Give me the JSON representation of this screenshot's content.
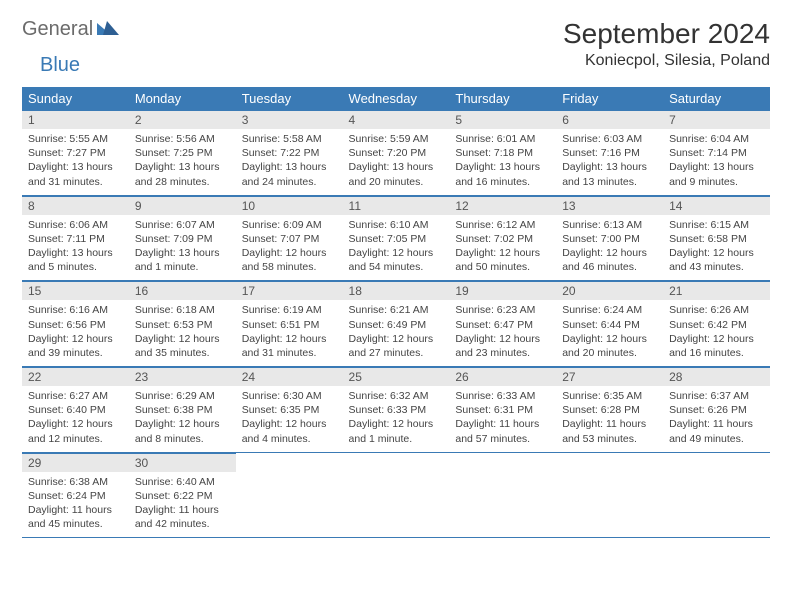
{
  "logo": {
    "part1": "General",
    "part2": "Blue"
  },
  "title": "September 2024",
  "location": "Koniecpol, Silesia, Poland",
  "colors": {
    "header_bg": "#3a7ab5",
    "header_fg": "#ffffff",
    "daynum_bg": "#e8e8e8",
    "rule": "#3a7ab5",
    "logo_gray": "#6b6b6b",
    "logo_blue": "#3a7ab5"
  },
  "weekdays": [
    "Sunday",
    "Monday",
    "Tuesday",
    "Wednesday",
    "Thursday",
    "Friday",
    "Saturday"
  ],
  "weeks": [
    [
      {
        "n": "1",
        "sr": "5:55 AM",
        "ss": "7:27 PM",
        "dl": "13 hours and 31 minutes."
      },
      {
        "n": "2",
        "sr": "5:56 AM",
        "ss": "7:25 PM",
        "dl": "13 hours and 28 minutes."
      },
      {
        "n": "3",
        "sr": "5:58 AM",
        "ss": "7:22 PM",
        "dl": "13 hours and 24 minutes."
      },
      {
        "n": "4",
        "sr": "5:59 AM",
        "ss": "7:20 PM",
        "dl": "13 hours and 20 minutes."
      },
      {
        "n": "5",
        "sr": "6:01 AM",
        "ss": "7:18 PM",
        "dl": "13 hours and 16 minutes."
      },
      {
        "n": "6",
        "sr": "6:03 AM",
        "ss": "7:16 PM",
        "dl": "13 hours and 13 minutes."
      },
      {
        "n": "7",
        "sr": "6:04 AM",
        "ss": "7:14 PM",
        "dl": "13 hours and 9 minutes."
      }
    ],
    [
      {
        "n": "8",
        "sr": "6:06 AM",
        "ss": "7:11 PM",
        "dl": "13 hours and 5 minutes."
      },
      {
        "n": "9",
        "sr": "6:07 AM",
        "ss": "7:09 PM",
        "dl": "13 hours and 1 minute."
      },
      {
        "n": "10",
        "sr": "6:09 AM",
        "ss": "7:07 PM",
        "dl": "12 hours and 58 minutes."
      },
      {
        "n": "11",
        "sr": "6:10 AM",
        "ss": "7:05 PM",
        "dl": "12 hours and 54 minutes."
      },
      {
        "n": "12",
        "sr": "6:12 AM",
        "ss": "7:02 PM",
        "dl": "12 hours and 50 minutes."
      },
      {
        "n": "13",
        "sr": "6:13 AM",
        "ss": "7:00 PM",
        "dl": "12 hours and 46 minutes."
      },
      {
        "n": "14",
        "sr": "6:15 AM",
        "ss": "6:58 PM",
        "dl": "12 hours and 43 minutes."
      }
    ],
    [
      {
        "n": "15",
        "sr": "6:16 AM",
        "ss": "6:56 PM",
        "dl": "12 hours and 39 minutes."
      },
      {
        "n": "16",
        "sr": "6:18 AM",
        "ss": "6:53 PM",
        "dl": "12 hours and 35 minutes."
      },
      {
        "n": "17",
        "sr": "6:19 AM",
        "ss": "6:51 PM",
        "dl": "12 hours and 31 minutes."
      },
      {
        "n": "18",
        "sr": "6:21 AM",
        "ss": "6:49 PM",
        "dl": "12 hours and 27 minutes."
      },
      {
        "n": "19",
        "sr": "6:23 AM",
        "ss": "6:47 PM",
        "dl": "12 hours and 23 minutes."
      },
      {
        "n": "20",
        "sr": "6:24 AM",
        "ss": "6:44 PM",
        "dl": "12 hours and 20 minutes."
      },
      {
        "n": "21",
        "sr": "6:26 AM",
        "ss": "6:42 PM",
        "dl": "12 hours and 16 minutes."
      }
    ],
    [
      {
        "n": "22",
        "sr": "6:27 AM",
        "ss": "6:40 PM",
        "dl": "12 hours and 12 minutes."
      },
      {
        "n": "23",
        "sr": "6:29 AM",
        "ss": "6:38 PM",
        "dl": "12 hours and 8 minutes."
      },
      {
        "n": "24",
        "sr": "6:30 AM",
        "ss": "6:35 PM",
        "dl": "12 hours and 4 minutes."
      },
      {
        "n": "25",
        "sr": "6:32 AM",
        "ss": "6:33 PM",
        "dl": "12 hours and 1 minute."
      },
      {
        "n": "26",
        "sr": "6:33 AM",
        "ss": "6:31 PM",
        "dl": "11 hours and 57 minutes."
      },
      {
        "n": "27",
        "sr": "6:35 AM",
        "ss": "6:28 PM",
        "dl": "11 hours and 53 minutes."
      },
      {
        "n": "28",
        "sr": "6:37 AM",
        "ss": "6:26 PM",
        "dl": "11 hours and 49 minutes."
      }
    ],
    [
      {
        "n": "29",
        "sr": "6:38 AM",
        "ss": "6:24 PM",
        "dl": "11 hours and 45 minutes."
      },
      {
        "n": "30",
        "sr": "6:40 AM",
        "ss": "6:22 PM",
        "dl": "11 hours and 42 minutes."
      },
      null,
      null,
      null,
      null,
      null
    ]
  ],
  "labels": {
    "sunrise": "Sunrise:",
    "sunset": "Sunset:",
    "daylight": "Daylight:"
  }
}
